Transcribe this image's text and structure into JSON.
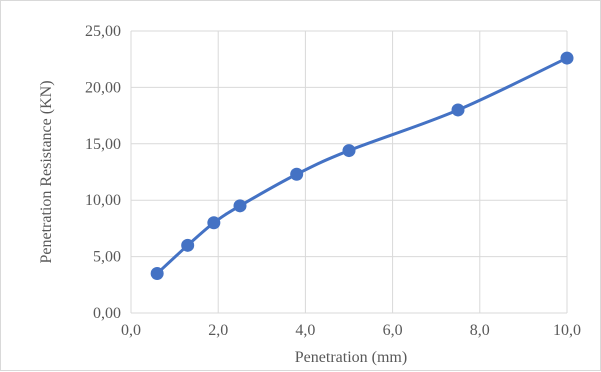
{
  "chart_data": {
    "type": "line",
    "title": "",
    "xlabel": "Penetration (mm)",
    "ylabel": "Penetration Resistance (KN)",
    "xlim": [
      0,
      10
    ],
    "ylim": [
      0,
      25
    ],
    "x_ticks": [
      "0,0",
      "2,0",
      "4,0",
      "6,0",
      "8,0",
      "10,0"
    ],
    "y_ticks": [
      "0,00",
      "5,00",
      "10,00",
      "15,00",
      "20,00",
      "25,00"
    ],
    "grid": true,
    "smooth": true,
    "series": [
      {
        "x": [
          0.6,
          1.3,
          1.9,
          2.5,
          3.8,
          5.0,
          7.5,
          10.0
        ],
        "y": [
          3.5,
          6.0,
          8.0,
          9.5,
          12.3,
          14.4,
          18.0,
          22.6
        ]
      }
    ],
    "colors": {
      "series": "#4472c4",
      "grid": "#d9d9d9",
      "text": "#595959"
    }
  }
}
